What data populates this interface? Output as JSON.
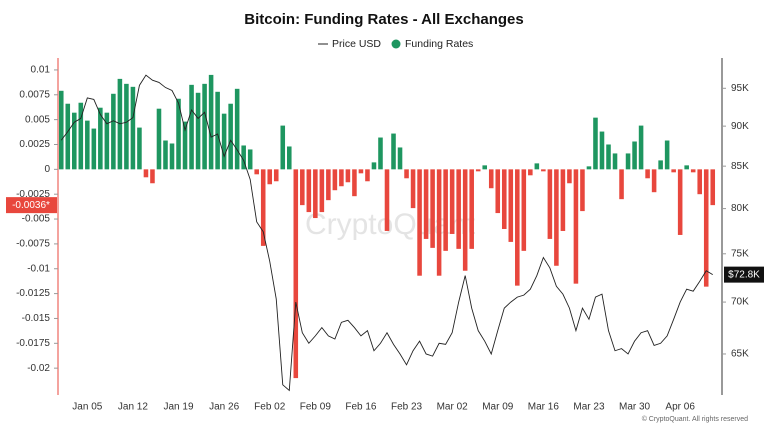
{
  "chart_data": {
    "type": "bar",
    "title": "Bitcoin: Funding Rates - All Exchanges",
    "watermark": "CryptoQuant",
    "footer": "© CryptoQuant. All rights reserved",
    "categories": [
      null,
      null,
      null,
      null,
      "Jan 05",
      null,
      null,
      null,
      null,
      null,
      null,
      "Jan 12",
      null,
      null,
      null,
      null,
      null,
      null,
      "Jan 19",
      null,
      null,
      null,
      null,
      null,
      null,
      "Jan 26",
      null,
      null,
      null,
      null,
      null,
      null,
      "Feb 02",
      null,
      null,
      null,
      null,
      null,
      null,
      "Feb 09",
      null,
      null,
      null,
      null,
      null,
      null,
      "Feb 16",
      null,
      null,
      null,
      null,
      null,
      null,
      "Feb 23",
      null,
      null,
      null,
      null,
      null,
      null,
      "Mar 02",
      null,
      null,
      null,
      null,
      null,
      null,
      "Mar 09",
      null,
      null,
      null,
      null,
      null,
      null,
      "Mar 16",
      null,
      null,
      null,
      null,
      null,
      null,
      "Mar 23",
      null,
      null,
      null,
      null,
      null,
      null,
      "Mar 30",
      null,
      null,
      null,
      null,
      null,
      null,
      "Apr 06",
      null,
      null,
      null,
      null,
      null
    ],
    "xticks": [
      "Jan 05",
      "Jan 12",
      "Jan 19",
      "Jan 26",
      "Feb 02",
      "Feb 09",
      "Feb 16",
      "Feb 23",
      "Mar 02",
      "Mar 09",
      "Mar 16",
      "Mar 23",
      "Mar 30",
      "Apr 06"
    ],
    "ylim": [
      -0.0227,
      0.0112
    ],
    "yticks": [
      0.01,
      0.0075,
      0.005,
      0.0025,
      0,
      -0.0025,
      -0.005,
      -0.0075,
      -0.01,
      -0.0125,
      -0.015,
      -0.0175,
      -0.02
    ],
    "y2lim": [
      61300,
      99200
    ],
    "y2scale": "log",
    "y2ticks": [
      {
        "value": 95000,
        "label": "95K"
      },
      {
        "value": 90000,
        "label": "90K"
      },
      {
        "value": 85000,
        "label": "85K"
      },
      {
        "value": 80000,
        "label": "80K"
      },
      {
        "value": 75000,
        "label": "75K"
      },
      {
        "value": 70000,
        "label": "70K"
      },
      {
        "value": 65000,
        "label": "65K"
      }
    ],
    "series": [
      {
        "name": "Funding Rates",
        "type": "bar",
        "color": "#1e9660",
        "negative_color": "#e8473d",
        "last_label": "-0.0036*",
        "values": [
          0.0079,
          0.0066,
          0.0057,
          0.0067,
          0.0049,
          0.0041,
          0.0062,
          0.0057,
          0.0076,
          0.0091,
          0.0086,
          0.0083,
          0.0042,
          -0.0008,
          -0.0014,
          0.0061,
          0.0029,
          0.0026,
          0.0071,
          0.0048,
          0.0085,
          0.0077,
          0.0086,
          0.0095,
          0.0078,
          0.0056,
          0.0066,
          0.0081,
          0.0024,
          0.002,
          -0.0005,
          -0.0077,
          -0.0015,
          -0.0012,
          0.0044,
          0.0023,
          -0.021,
          -0.0036,
          -0.0043,
          -0.0049,
          -0.0043,
          -0.0031,
          -0.0021,
          -0.0017,
          -0.0013,
          -0.0027,
          -0.0004,
          -0.0012,
          0.0007,
          0.0032,
          -0.0062,
          0.0036,
          0.0022,
          -0.0009,
          -0.0039,
          -0.0107,
          -0.007,
          -0.0079,
          -0.0107,
          -0.0082,
          -0.0065,
          -0.008,
          -0.0102,
          -0.008,
          -0.0002,
          0.0004,
          -0.0019,
          -0.0044,
          -0.006,
          -0.0073,
          -0.0117,
          -0.0082,
          -0.0006,
          0.0006,
          -0.0002,
          -0.007,
          -0.0097,
          -0.0062,
          -0.0014,
          -0.0115,
          -0.0042,
          0.0003,
          0.0052,
          0.0038,
          0.0025,
          0.0016,
          -0.003,
          0.0016,
          0.0028,
          0.0044,
          -0.0009,
          -0.0023,
          0.0009,
          0.0029,
          -0.0003,
          -0.0066,
          0.0004,
          -0.0003,
          -0.0025,
          -0.0118,
          -0.0036
        ]
      },
      {
        "name": "Price USD",
        "type": "line",
        "axis": "y2",
        "color": "#222222",
        "last_label": "$72.8K",
        "values": [
          88200,
          89300,
          90500,
          91000,
          93700,
          93500,
          91500,
          90300,
          90700,
          90300,
          90500,
          91100,
          95400,
          96800,
          96100,
          95800,
          95100,
          94700,
          93000,
          89500,
          92100,
          91000,
          91800,
          88600,
          89000,
          86200,
          88200,
          87000,
          85700,
          83400,
          78500,
          77400,
          74200,
          70300,
          62200,
          61700,
          70000,
          67000,
          66000,
          66700,
          67500,
          66700,
          66400,
          68000,
          68200,
          67500,
          66700,
          67200,
          65300,
          66000,
          67000,
          65900,
          65000,
          64000,
          65300,
          66200,
          65000,
          64800,
          66000,
          65900,
          67000,
          70000,
          72700,
          69400,
          67200,
          66200,
          65000,
          67200,
          69400,
          70000,
          70500,
          70700,
          71300,
          72700,
          74600,
          73500,
          71600,
          70800,
          69400,
          67200,
          69400,
          68300,
          70500,
          70800,
          67200,
          65300,
          65500,
          65000,
          66200,
          67000,
          67200,
          65800,
          66000,
          66700,
          68300,
          70000,
          71300,
          71100,
          72100,
          73200,
          72800
        ]
      }
    ]
  }
}
